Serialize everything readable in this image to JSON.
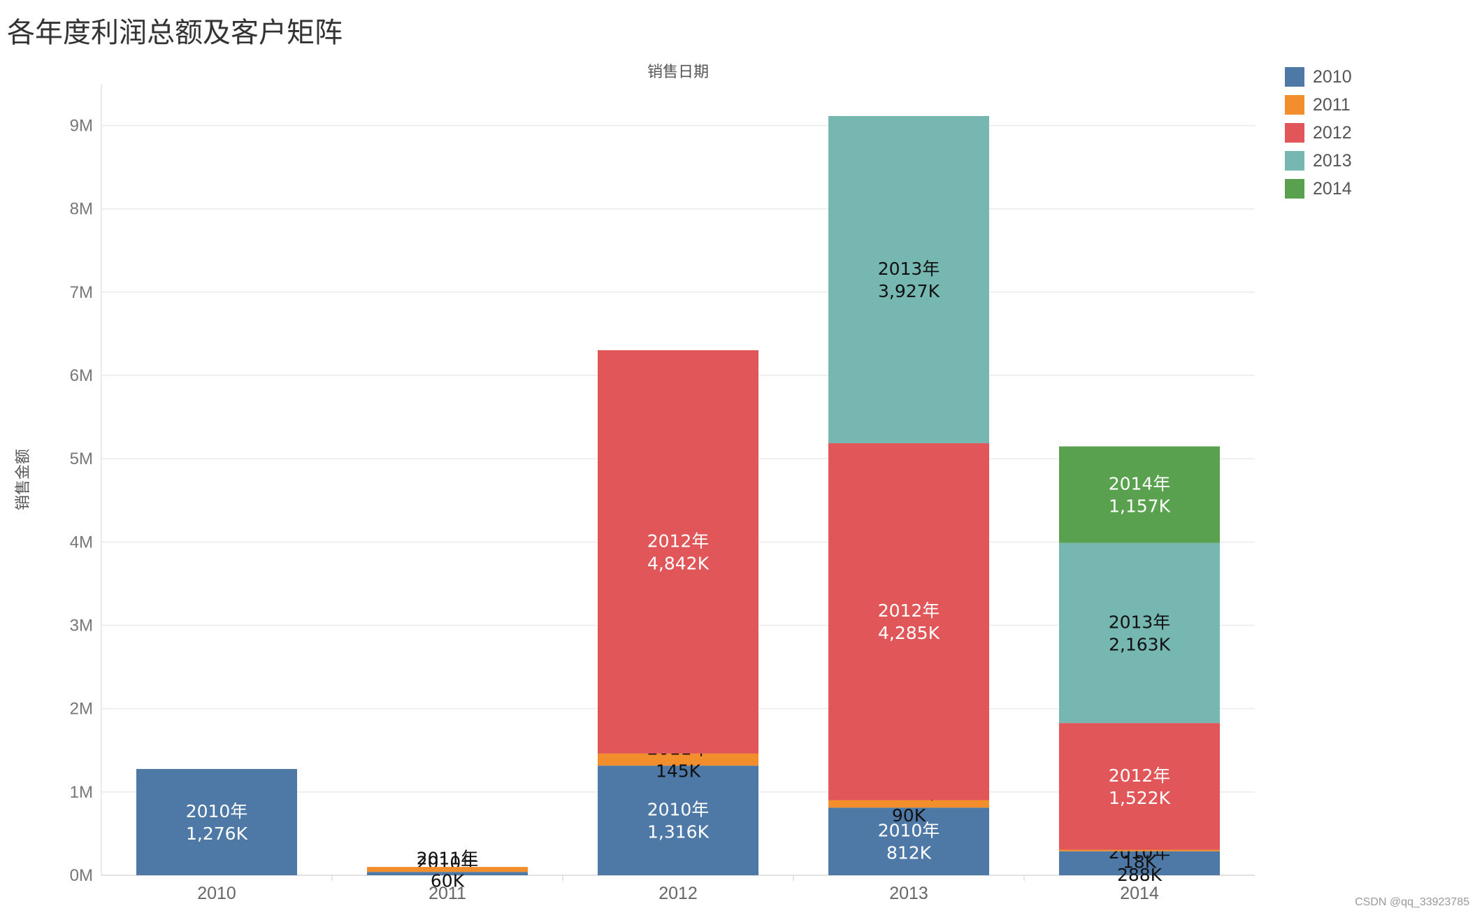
{
  "title": "各年度利润总额及客户矩阵",
  "watermark": "CSDN @qq_33923785",
  "chart_data": {
    "type": "bar",
    "stacked": true,
    "xlabel": "销售日期",
    "ylabel": "销售金额",
    "ylim": [
      0,
      9500000
    ],
    "y_ticks": [
      0,
      1000000,
      2000000,
      3000000,
      4000000,
      5000000,
      6000000,
      7000000,
      8000000,
      9000000
    ],
    "y_tick_labels": [
      "0M",
      "1M",
      "2M",
      "3M",
      "4M",
      "5M",
      "6M",
      "7M",
      "8M",
      "9M"
    ],
    "categories": [
      "2010",
      "2011",
      "2012",
      "2013",
      "2014"
    ],
    "grid": true,
    "legend_position": "top-right",
    "series": [
      {
        "name": "2010",
        "color": "#4e79a7",
        "values": [
          1276000,
          40000,
          1316000,
          812000,
          288000
        ],
        "labels": [
          "2010年\n1,276K",
          "2010年\n",
          "2010年\n1,316K",
          "2010年\n812K",
          "2010年\n288K"
        ],
        "label_colors": [
          "#ffffff",
          "#111111",
          "#ffffff",
          "#ffffff",
          "#111111"
        ]
      },
      {
        "name": "2011",
        "color": "#f28e2b",
        "values": [
          0,
          60000,
          145000,
          90000,
          18000
        ],
        "labels": [
          "",
          "2011年\n60K",
          "2011年\n145K",
          "2011年\n90K",
          "2011年\n18K"
        ],
        "label_colors": [
          "#111111",
          "#111111",
          "#111111",
          "#111111",
          "#111111"
        ]
      },
      {
        "name": "2012",
        "color": "#e15759",
        "values": [
          0,
          0,
          4842000,
          4285000,
          1522000
        ],
        "labels": [
          "",
          "",
          "2012年\n4,842K",
          "2012年\n4,285K",
          "2012年\n1,522K"
        ],
        "label_colors": [
          "#ffffff",
          "#ffffff",
          "#ffffff",
          "#ffffff",
          "#ffffff"
        ]
      },
      {
        "name": "2013",
        "color": "#76b7b2",
        "values": [
          0,
          0,
          0,
          3927000,
          2163000
        ],
        "labels": [
          "",
          "",
          "",
          "2013年\n3,927K",
          "2013年\n2,163K"
        ],
        "label_colors": [
          "#111111",
          "#111111",
          "#111111",
          "#111111",
          "#111111"
        ]
      },
      {
        "name": "2014",
        "color": "#59a14f",
        "values": [
          0,
          0,
          0,
          0,
          1157000
        ],
        "labels": [
          "",
          "",
          "",
          "",
          "2014年\n1,157K"
        ],
        "label_colors": [
          "#ffffff",
          "#ffffff",
          "#ffffff",
          "#ffffff",
          "#ffffff"
        ]
      }
    ]
  }
}
